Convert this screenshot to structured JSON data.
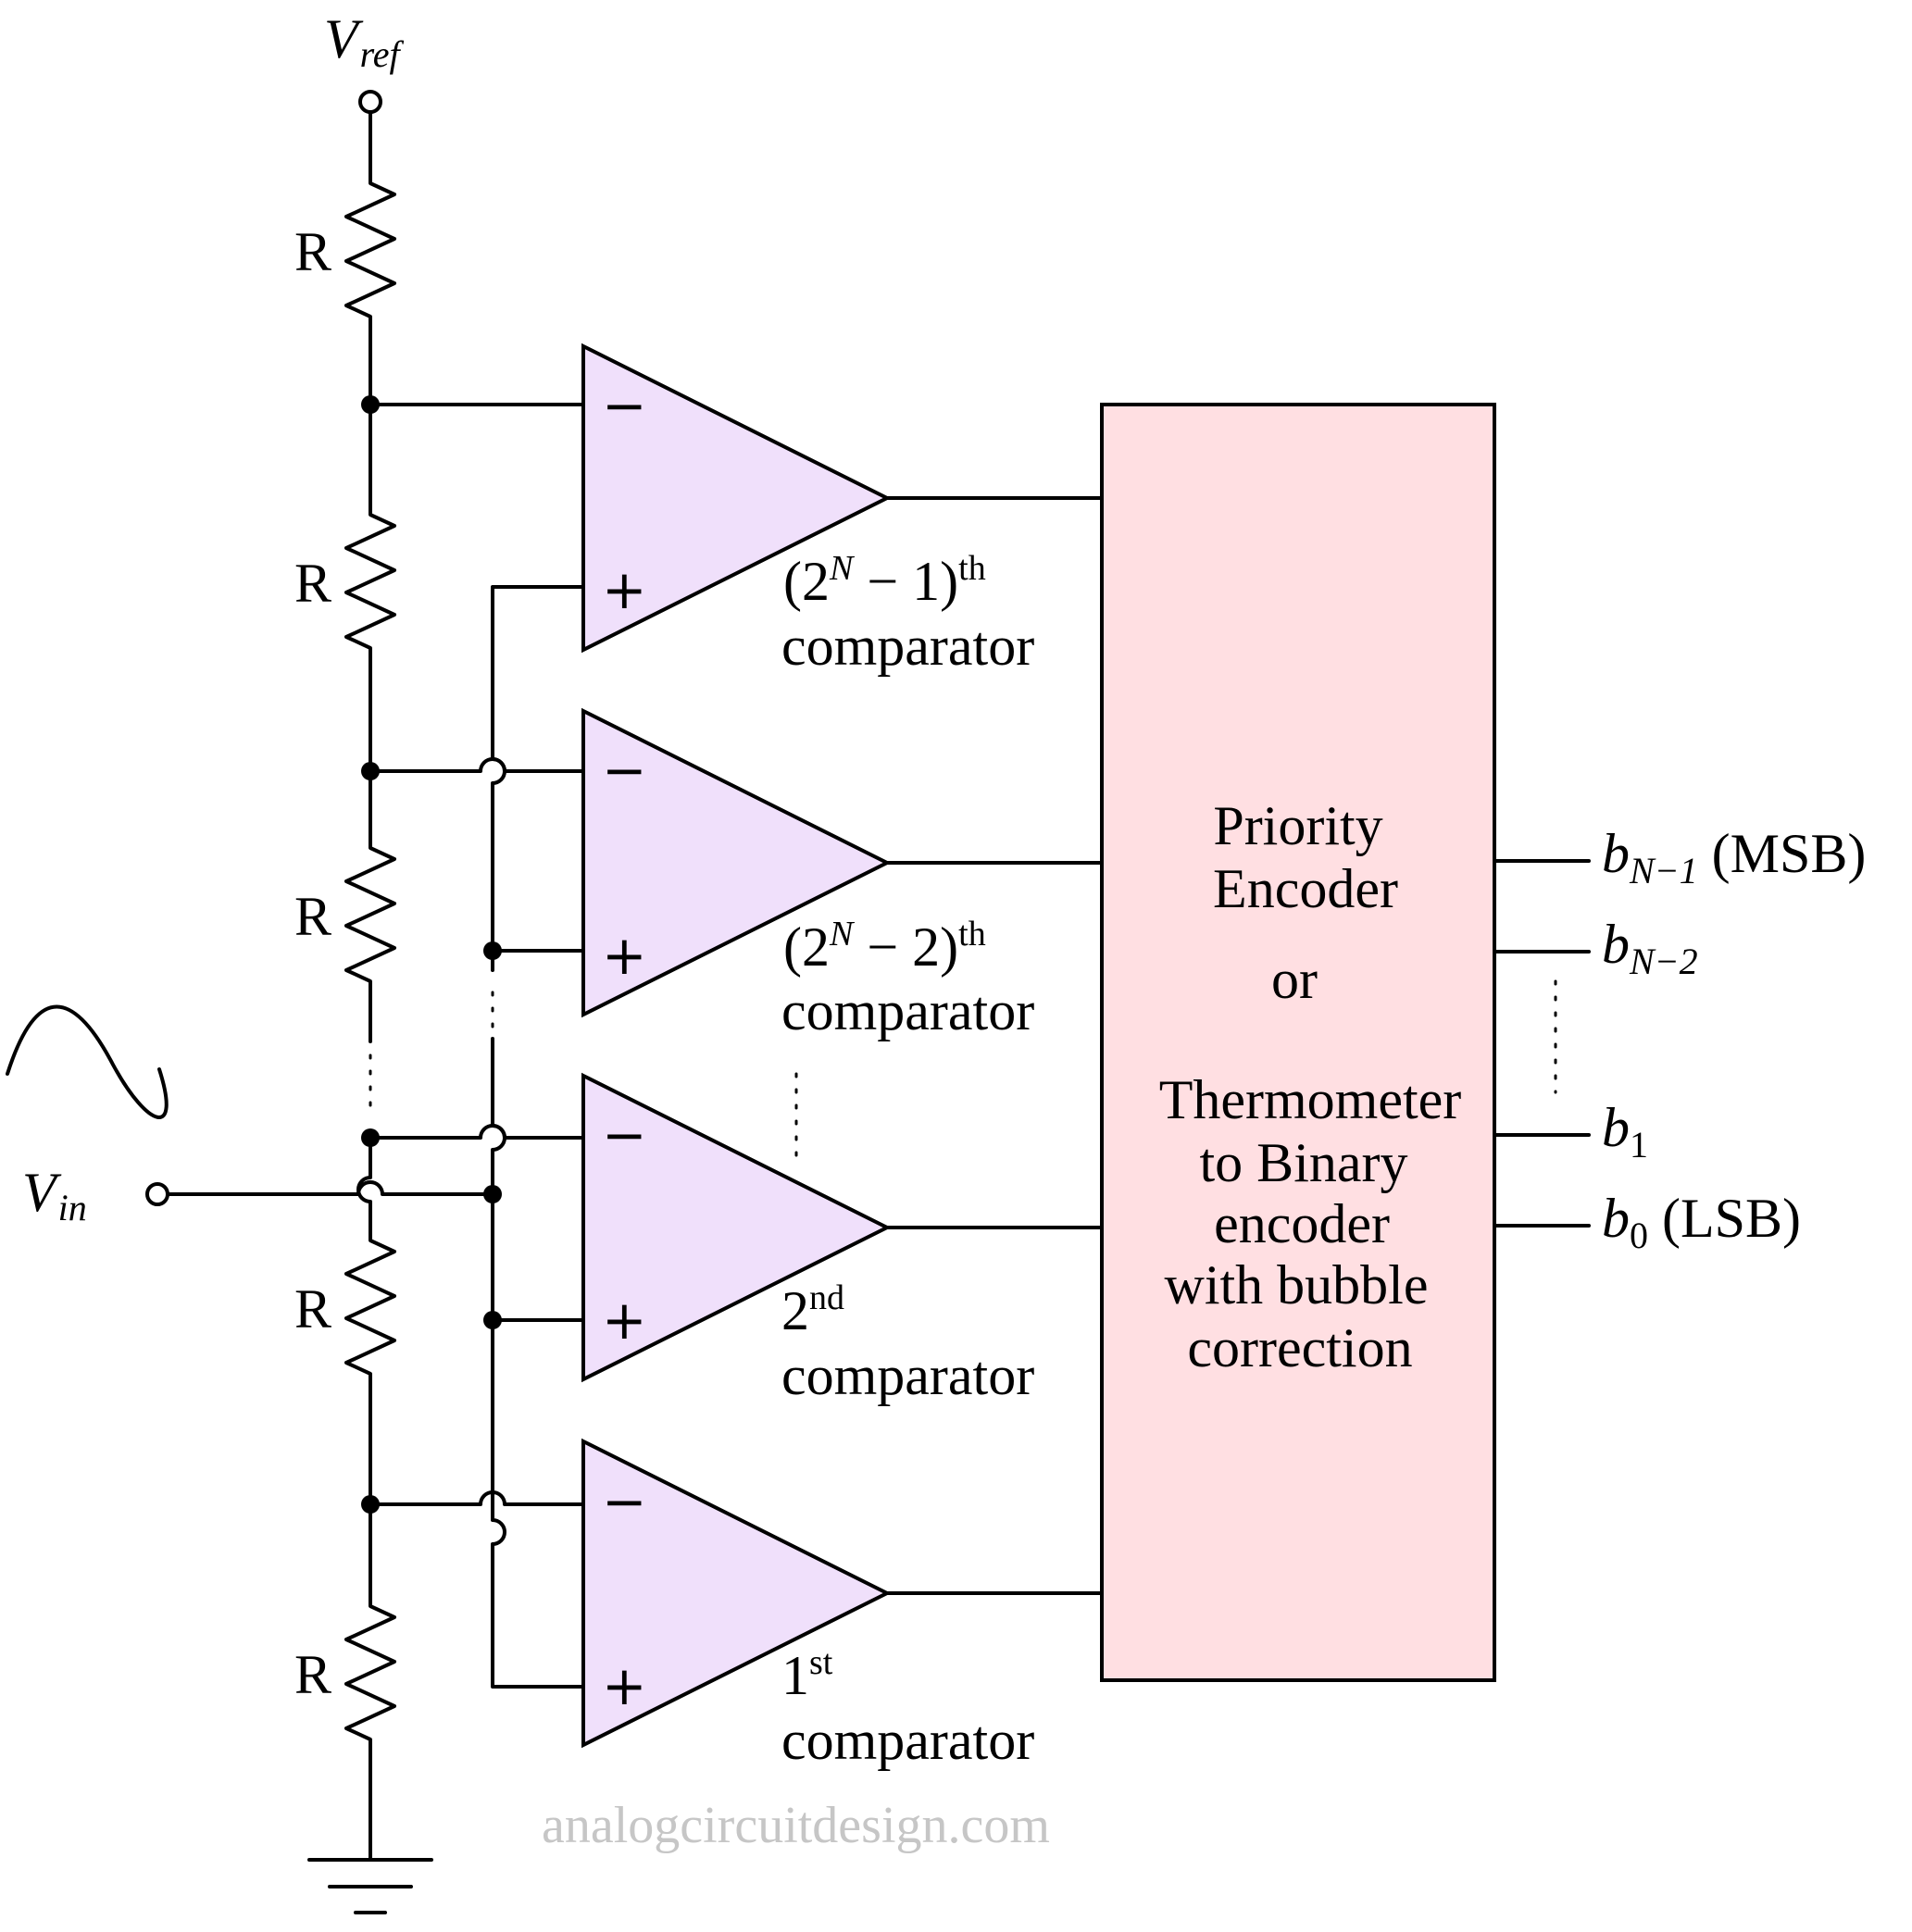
{
  "labels": {
    "vref_main": "V",
    "vref_sub": "ref",
    "vin_main": "V",
    "vin_sub": "in",
    "resistor": "R",
    "minus": "−",
    "plus": "+"
  },
  "comparators": [
    {
      "open": "(2",
      "sup_n": "N",
      "mid": " − 1)",
      "sup_th": "th",
      "name": "comparator"
    },
    {
      "open": "(2",
      "sup_n": "N",
      "mid": " − 2)",
      "sup_th": "th",
      "name": "comparator"
    },
    {
      "num": "2",
      "sup": "nd",
      "name": "comparator"
    },
    {
      "num": "1",
      "sup": "st",
      "name": "comparator"
    }
  ],
  "encoder": {
    "lines": [
      "Priority",
      "Encoder",
      "or",
      "Thermometer",
      "to Binary",
      "encoder",
      "with bubble",
      "correction"
    ]
  },
  "outputs": [
    {
      "main": "b",
      "sub": "N−1",
      "suffix": " (MSB)"
    },
    {
      "main": "b",
      "sub": "N−2",
      "suffix": ""
    },
    {
      "main": "b",
      "sub": "1",
      "suffix": ""
    },
    {
      "main": "b",
      "sub": "0",
      "suffix": " (LSB)"
    }
  ],
  "watermark": "analogcircuitdesign.com",
  "colors": {
    "comparator_fill": "#f0e0fb",
    "encoder_fill": "#ffdfe2",
    "stroke": "#000000",
    "watermark": "#c6c6c6"
  }
}
